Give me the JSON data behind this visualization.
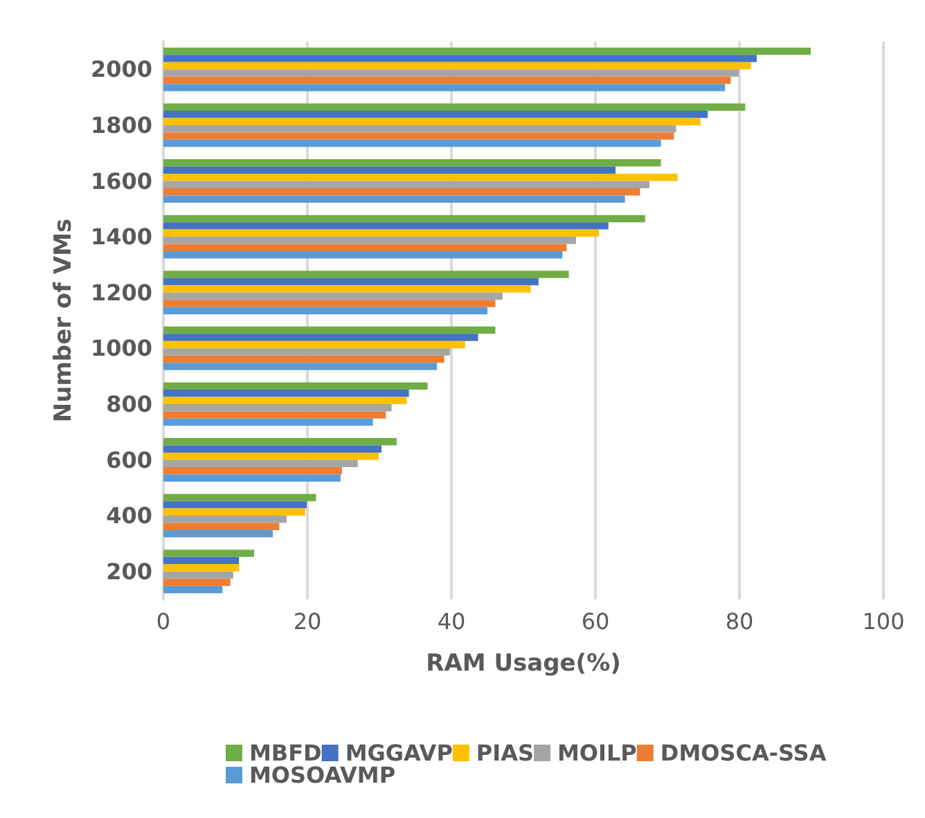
{
  "chart_data": {
    "type": "bar",
    "orientation": "horizontal",
    "xlabel": "RAM Usage(%)",
    "ylabel": "Number of VMs",
    "categories": [
      "2000",
      "1800",
      "1600",
      "1400",
      "1200",
      "1000",
      "800",
      "600",
      "400",
      "200"
    ],
    "series": [
      {
        "name": "MBFD",
        "color": "#70ad47",
        "values": [
          89.9,
          80.8,
          69.1,
          66.9,
          56.3,
          46.1,
          36.7,
          32.4,
          21.2,
          12.6
        ]
      },
      {
        "name": "MGGAVP",
        "color": "#4472c4",
        "values": [
          82.4,
          75.6,
          62.8,
          61.8,
          52.1,
          43.7,
          34.1,
          30.3,
          19.9,
          10.5
        ]
      },
      {
        "name": "PIAS",
        "color": "#ffc000",
        "values": [
          81.6,
          74.6,
          71.4,
          60.5,
          51.0,
          41.9,
          33.8,
          29.9,
          19.7,
          10.5
        ]
      },
      {
        "name": "MOILP",
        "color": "#a5a5a5",
        "values": [
          79.9,
          71.2,
          67.5,
          57.3,
          47.1,
          39.8,
          31.7,
          27.0,
          17.1,
          9.7
        ]
      },
      {
        "name": "DMOSCA-SSA",
        "color": "#ed7d31",
        "values": [
          78.8,
          70.9,
          66.2,
          56.0,
          46.1,
          39.0,
          30.9,
          24.8,
          16.1,
          9.3
        ]
      },
      {
        "name": "MOSOAVMP",
        "color": "#5b9bd5",
        "values": [
          78.0,
          69.1,
          64.1,
          55.4,
          45.0,
          38.0,
          29.1,
          24.6,
          15.2,
          8.2
        ]
      }
    ],
    "xlim": [
      0,
      100
    ],
    "xticks": [
      0,
      20,
      40,
      60,
      80,
      100
    ],
    "grid": "x",
    "legend": "bottom"
  }
}
